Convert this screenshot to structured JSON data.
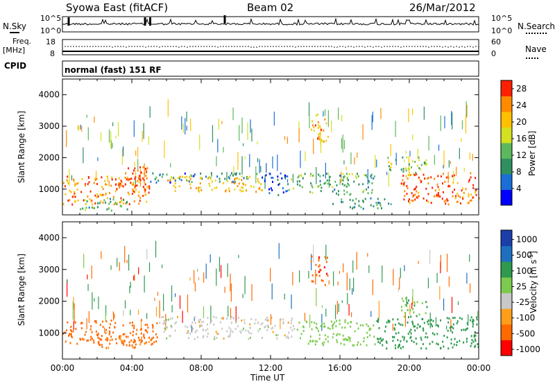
{
  "header": {
    "station": "Syowa East (fitACF)",
    "beam": "Beam 02",
    "date": "26/Mar/2012"
  },
  "noise_panel": {
    "left_label": "N.Sky",
    "right_label": "N.Search",
    "scale_top_left": "10^5",
    "scale_bottom_left": "10^0",
    "scale_top_right": "10^5",
    "scale_bottom_right": "10^0"
  },
  "freq_panel": {
    "left_label_1": "Freq.",
    "left_label_2": "[MHz]",
    "left_top": "18",
    "left_bottom": "8",
    "right_label": "Nave",
    "right_top": "60",
    "right_bottom": "0"
  },
  "cpid_panel": {
    "label": "CPID",
    "value": "normal (fast) 151 RF"
  },
  "x_axis": {
    "label": "Time UT",
    "ticks": [
      "00:00",
      "04:00",
      "08:00",
      "12:00",
      "16:00",
      "20:00",
      "00:00"
    ]
  },
  "colors": {
    "power": [
      "#0000ff",
      "#1a6fd6",
      "#2f8f5f",
      "#5cb85c",
      "#d4e021",
      "#ffc000",
      "#ff8a00",
      "#ff2000"
    ],
    "velocity": [
      "#ff0000",
      "#ff6a00",
      "#ff9e1a",
      "#c8c8c8",
      "#7ccb4e",
      "#2e9a4e",
      "#1e6fc0",
      "#1b3faa"
    ]
  },
  "chart_data": [
    {
      "type": "heatmap",
      "title": "",
      "xlabel": "Time UT",
      "ylabel": "Slant Range [km]",
      "xlim": [
        "00:00",
        "24:00"
      ],
      "ylim": [
        180,
        4500
      ],
      "y_ticks": [
        1000,
        2000,
        3000,
        4000
      ],
      "colorbar": {
        "label": "Power [dB]",
        "ticks": [
          4,
          8,
          12,
          16,
          20,
          24,
          28
        ],
        "range": [
          0,
          30
        ]
      },
      "regions": [
        {
          "t0": 0.0,
          "t1": 5.0,
          "r0": 500,
          "r1": 1400,
          "value": 24
        },
        {
          "t0": 3.0,
          "t1": 5.0,
          "r0": 900,
          "r1": 1700,
          "value": 28
        },
        {
          "t0": 1.0,
          "t1": 4.0,
          "r0": 300,
          "r1": 700,
          "value": 12
        },
        {
          "t0": 5.0,
          "t1": 11.5,
          "r0": 1200,
          "r1": 1500,
          "value": 8
        },
        {
          "t0": 6.0,
          "t1": 11.5,
          "r0": 900,
          "r1": 1400,
          "value": 20
        },
        {
          "t0": 11.5,
          "t1": 13.0,
          "r0": 800,
          "r1": 1500,
          "value": 4
        },
        {
          "t0": 13.0,
          "t1": 18.0,
          "r0": 800,
          "r1": 1500,
          "value": 12
        },
        {
          "t0": 14.3,
          "t1": 15.3,
          "r0": 2500,
          "r1": 3400,
          "value": 22
        },
        {
          "t0": 15.5,
          "t1": 19.0,
          "r0": 350,
          "r1": 700,
          "value": 10
        },
        {
          "t0": 19.5,
          "t1": 24.0,
          "r0": 500,
          "r1": 1500,
          "value": 26
        },
        {
          "t0": 18.5,
          "t1": 21.0,
          "r0": 1500,
          "r1": 2000,
          "value": 14
        }
      ]
    },
    {
      "type": "heatmap",
      "title": "",
      "xlabel": "Time UT",
      "ylabel": "Slant Range [km]",
      "xlim": [
        "00:00",
        "24:00"
      ],
      "ylim": [
        180,
        4500
      ],
      "y_ticks": [
        1000,
        2000,
        3000,
        4000
      ],
      "colorbar": {
        "label": "Velocity [m s^-1]",
        "ticks": [
          1000,
          500,
          100,
          25,
          -25,
          -100,
          -500,
          -1000
        ]
      },
      "regions": [
        {
          "t0": 0.0,
          "t1": 5.5,
          "r0": 600,
          "r1": 1400,
          "value": -300
        },
        {
          "t0": 2.0,
          "t1": 5.5,
          "r0": 500,
          "r1": 900,
          "value": -120
        },
        {
          "t0": 5.5,
          "t1": 13.5,
          "r0": 800,
          "r1": 1500,
          "value": 0
        },
        {
          "t0": 13.5,
          "t1": 18.0,
          "r0": 600,
          "r1": 1400,
          "value": 60
        },
        {
          "t0": 14.3,
          "t1": 15.3,
          "r0": 2500,
          "r1": 3400,
          "value": -400
        },
        {
          "t0": 18.0,
          "t1": 24.0,
          "r0": 500,
          "r1": 1500,
          "value": 300
        },
        {
          "t0": 19.5,
          "t1": 21.0,
          "r0": 1500,
          "r1": 2100,
          "value": 80
        }
      ]
    }
  ]
}
